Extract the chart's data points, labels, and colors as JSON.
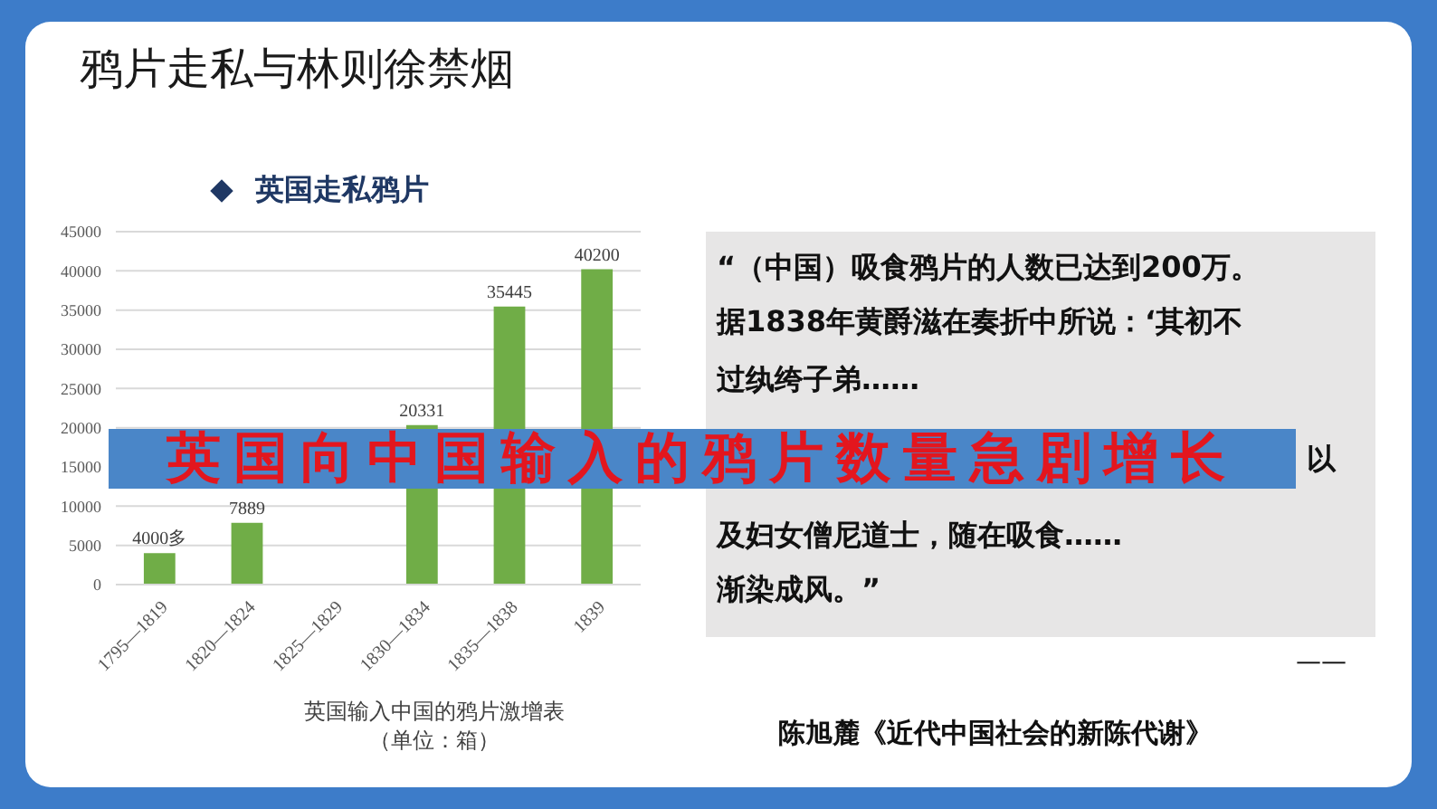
{
  "chart_data": {
    "type": "bar",
    "title": "鸦片走私与林则徐禁烟",
    "subtitle": "英国走私鸦片",
    "xlabel": "英国输入中国的鸦片激增表",
    "categories": [
      "1795—1819",
      "1820—1824",
      "1825—1829",
      "1830—1834",
      "1835—1838",
      "1839"
    ],
    "values": [
      4000,
      7889,
      null,
      20331,
      35445,
      40200
    ],
    "value_labels": [
      "4000多",
      "7889",
      null,
      "20331",
      "35445",
      "40200"
    ],
    "color": "#70ad47",
    "ylim": [
      0,
      45000
    ],
    "yticks": [
      0,
      5000,
      10000,
      15000,
      20000,
      25000,
      30000,
      35000,
      40000,
      45000
    ],
    "grid": "y",
    "legend": false,
    "annotations": [
      "英国向中国输入的鸦片数量急剧增长",
      "“（中国）吸食鸦片的人数已达到200万。",
      "据1838年黄爵滋在奏折中所说：‘其初不",
      "过纨绔子弟……",
      "以",
      "及妇女僧尼道士，随在吸食……",
      "渐染成风。”",
      "——",
      "陈旭麓《近代中国社会的新陈代谢》",
      "（单位：箱）"
    ]
  }
}
